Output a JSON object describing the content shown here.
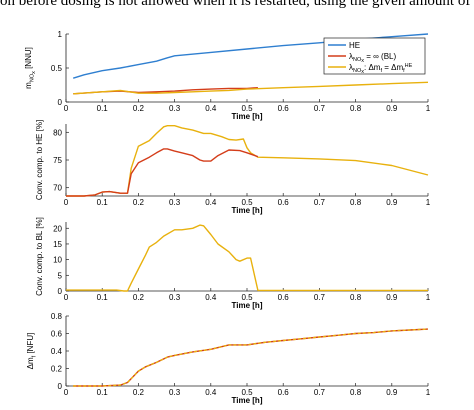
{
  "top_text": "on before dosing is not allowed when it is restarted, using the given amount of",
  "chart_data": [
    {
      "type": "line",
      "ylabel": "m",
      "ylabel_sub": "NO",
      "ylabel_sub2": "x",
      "ylabel_unit": " [NNU]",
      "xlabel": "Time [h]",
      "xlim": [
        0,
        1
      ],
      "ylim": [
        0,
        1
      ],
      "xticks": [
        "0",
        "0.1",
        "0.2",
        "0.3",
        "0.4",
        "0.5",
        "0.6",
        "0.7",
        "0.8",
        "0.9",
        "1"
      ],
      "yticks": [
        "0",
        "0.5",
        "1"
      ],
      "legend": {
        "placement": "top-right",
        "entries": [
          {
            "text": "HE",
            "series": 0
          },
          {
            "pre": "λ",
            "sub": "NO",
            "sub2": "x",
            "post": " = ∞ (BL)",
            "series": 1
          },
          {
            "pre": "λ",
            "sub": "NO",
            "sub2": "x",
            "post": ": Δm",
            "sub3": "f",
            "post2": " = Δm",
            "sub4": "f",
            "sup4": "HE",
            "series": 2
          }
        ]
      },
      "series": [
        {
          "name": "HE",
          "color": "#2f7fd0",
          "x": [
            0.02,
            0.05,
            0.1,
            0.15,
            0.2,
            0.25,
            0.28,
            0.3,
            0.4,
            0.5,
            0.6,
            0.7,
            0.8,
            0.9,
            1.0
          ],
          "y": [
            0.35,
            0.4,
            0.46,
            0.5,
            0.55,
            0.6,
            0.65,
            0.68,
            0.73,
            0.78,
            0.83,
            0.87,
            0.92,
            0.96,
            1.0
          ]
        },
        {
          "name": "λNOx = ∞ (BL)",
          "color": "#d43d1a",
          "x": [
            0.02,
            0.1,
            0.15,
            0.2,
            0.25,
            0.3,
            0.35,
            0.4,
            0.45,
            0.5,
            0.53
          ],
          "y": [
            0.12,
            0.15,
            0.16,
            0.14,
            0.15,
            0.16,
            0.18,
            0.19,
            0.2,
            0.2,
            0.21
          ]
        },
        {
          "name": "λNOx: Δmf = ΔmfHE",
          "color": "#e8b10e",
          "x": [
            0.02,
            0.1,
            0.15,
            0.2,
            0.25,
            0.3,
            0.35,
            0.4,
            0.45,
            0.5,
            0.6,
            0.7,
            0.8,
            0.9,
            1.0
          ],
          "y": [
            0.12,
            0.15,
            0.17,
            0.13,
            0.13,
            0.14,
            0.15,
            0.16,
            0.17,
            0.19,
            0.21,
            0.23,
            0.25,
            0.27,
            0.29
          ]
        }
      ]
    },
    {
      "type": "line",
      "ylabel": "Conv. comp. to HE [%]",
      "xlabel": "Time [h]",
      "xlim": [
        0,
        1
      ],
      "ylim": [
        68.5,
        81.5
      ],
      "xticks": [
        "0",
        "0.1",
        "0.2",
        "0.3",
        "0.4",
        "0.5",
        "0.6",
        "0.7",
        "0.8",
        "0.9",
        "1"
      ],
      "yticks": [
        "70",
        "75",
        "80"
      ],
      "series": [
        {
          "color": "#e8b10e",
          "x": [
            0.0,
            0.05,
            0.08,
            0.1,
            0.12,
            0.15,
            0.17,
            0.18,
            0.2,
            0.23,
            0.25,
            0.27,
            0.28,
            0.3,
            0.32,
            0.35,
            0.38,
            0.4,
            0.43,
            0.45,
            0.47,
            0.49,
            0.5,
            0.51,
            0.53,
            0.6,
            0.7,
            0.8,
            0.9,
            1.0
          ],
          "y": [
            68.5,
            68.5,
            68.7,
            69.2,
            69.3,
            69.0,
            69.0,
            73.5,
            77.5,
            78.5,
            79.8,
            81.0,
            81.2,
            81.2,
            80.8,
            80.4,
            79.8,
            79.8,
            79.2,
            78.7,
            78.6,
            78.8,
            77.2,
            76.3,
            75.5,
            75.4,
            75.2,
            74.9,
            74.0,
            72.3
          ]
        },
        {
          "color": "#d43d1a",
          "x": [
            0.0,
            0.05,
            0.08,
            0.1,
            0.12,
            0.15,
            0.17,
            0.18,
            0.2,
            0.23,
            0.25,
            0.27,
            0.28,
            0.3,
            0.32,
            0.35,
            0.37,
            0.38,
            0.4,
            0.42,
            0.45,
            0.48,
            0.5,
            0.53
          ],
          "y": [
            68.5,
            68.5,
            68.7,
            69.2,
            69.3,
            69.0,
            69.0,
            72.5,
            74.5,
            75.5,
            76.3,
            77.0,
            77.0,
            76.6,
            76.3,
            75.8,
            75.0,
            74.8,
            74.8,
            75.8,
            76.8,
            76.7,
            76.3,
            75.6
          ]
        }
      ]
    },
    {
      "type": "line",
      "ylabel": "Conv. comp. to BL [%]",
      "xlabel": "Time [h]",
      "xlim": [
        0,
        1
      ],
      "ylim": [
        0,
        22
      ],
      "xticks": [
        "0",
        "0.1",
        "0.2",
        "0.3",
        "0.4",
        "0.5",
        "0.6",
        "0.7",
        "0.8",
        "0.9",
        "1"
      ],
      "yticks": [
        "0",
        "5",
        "10",
        "15",
        "20"
      ],
      "series": [
        {
          "color": "#e8b10e",
          "x": [
            0.0,
            0.1,
            0.14,
            0.16,
            0.17,
            0.18,
            0.2,
            0.22,
            0.23,
            0.25,
            0.27,
            0.3,
            0.32,
            0.35,
            0.37,
            0.38,
            0.4,
            0.42,
            0.45,
            0.47,
            0.48,
            0.5,
            0.51,
            0.53,
            0.6,
            0.7,
            0.8,
            0.9,
            1.0
          ],
          "y": [
            0.3,
            0.3,
            0.3,
            0.0,
            0.0,
            2.5,
            7.0,
            11.5,
            14.0,
            15.5,
            17.5,
            19.5,
            19.5,
            20.0,
            21.0,
            20.8,
            18.0,
            15.0,
            12.5,
            10.0,
            9.5,
            10.5,
            10.5,
            0.2,
            0.2,
            0.2,
            0.2,
            0.2,
            0.2
          ]
        }
      ]
    },
    {
      "type": "line",
      "ylabel": "Δm",
      "ylabel_sub": "f",
      "ylabel_unit": " [NFU]",
      "xlabel": "Time [h]",
      "xlim": [
        0,
        1
      ],
      "ylim": [
        0,
        0.8
      ],
      "xticks": [
        "0",
        "0.1",
        "0.2",
        "0.3",
        "0.4",
        "0.5",
        "0.6",
        "0.7",
        "0.8",
        "0.9",
        "1"
      ],
      "yticks": [
        "0",
        "0.2",
        "0.4",
        "0.6",
        "0.8"
      ],
      "series": [
        {
          "color": "#d43d1a",
          "x": [
            0.02,
            0.05,
            0.1,
            0.15,
            0.17,
            0.2,
            0.22,
            0.25,
            0.28,
            0.3,
            0.35,
            0.4,
            0.45,
            0.5,
            0.55,
            0.6,
            0.65,
            0.7,
            0.75,
            0.8,
            0.85,
            0.9,
            0.95,
            1.0
          ],
          "y": [
            0.0,
            0.0,
            0.0,
            0.01,
            0.04,
            0.17,
            0.22,
            0.27,
            0.33,
            0.35,
            0.39,
            0.42,
            0.47,
            0.47,
            0.5,
            0.52,
            0.54,
            0.56,
            0.58,
            0.6,
            0.61,
            0.63,
            0.64,
            0.65
          ]
        },
        {
          "color": "#e8b10e",
          "dashed": true,
          "x": [
            0.02,
            0.05,
            0.1,
            0.15,
            0.17,
            0.2,
            0.22,
            0.25,
            0.28,
            0.3,
            0.35,
            0.4,
            0.45,
            0.5,
            0.55,
            0.6,
            0.65,
            0.7,
            0.75,
            0.8,
            0.85,
            0.9,
            0.95,
            1.0
          ],
          "y": [
            0.0,
            0.0,
            0.0,
            0.01,
            0.04,
            0.17,
            0.22,
            0.27,
            0.33,
            0.35,
            0.39,
            0.42,
            0.47,
            0.47,
            0.5,
            0.52,
            0.54,
            0.56,
            0.58,
            0.6,
            0.61,
            0.63,
            0.64,
            0.65
          ]
        }
      ]
    }
  ]
}
